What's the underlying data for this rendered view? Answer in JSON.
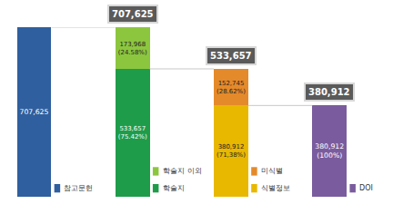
{
  "chart_data": {
    "type": "bar",
    "stacked": true,
    "data_labels": true,
    "tick_labels": false,
    "grid": false,
    "categories": [
      null,
      null,
      null,
      null
    ],
    "series": [
      {
        "name": "참고문헌",
        "color": "#2f5f9e",
        "values": [
          707625,
          null,
          null,
          null
        ],
        "value_labels": [
          "707,625",
          null,
          null,
          null
        ]
      },
      {
        "name": "학술지",
        "color": "#1f9c4a",
        "values": [
          null,
          533657,
          null,
          null
        ],
        "value_labels": [
          null,
          "533,657 (75.42%)",
          null,
          null
        ]
      },
      {
        "name": "학술지 이외",
        "color": "#8cc63f",
        "values": [
          null,
          173968,
          null,
          null
        ],
        "value_labels": [
          null,
          "173,968 (24.58%)",
          null,
          null
        ]
      },
      {
        "name": "식별정보",
        "color": "#e8b800",
        "values": [
          null,
          null,
          380912,
          null
        ],
        "value_labels": [
          null,
          null,
          "380,912 (71,38%)",
          null
        ]
      },
      {
        "name": "미식별",
        "color": "#e58a2a",
        "values": [
          null,
          null,
          152745,
          null
        ],
        "value_labels": [
          null,
          null,
          "152,745 (28.62%)",
          null
        ]
      },
      {
        "name": "DOI",
        "color": "#7a5c9e",
        "values": [
          null,
          null,
          null,
          380912
        ],
        "value_labels": [
          null,
          null,
          null,
          "380,912 (100%)"
        ]
      }
    ],
    "totals": [
      null,
      707625,
      533657,
      380912
    ],
    "total_labels": [
      null,
      "707,625",
      "533,657",
      "380,912"
    ],
    "ylim": [
      0,
      707625
    ],
    "yticks": [
      0,
      707625
    ]
  }
}
